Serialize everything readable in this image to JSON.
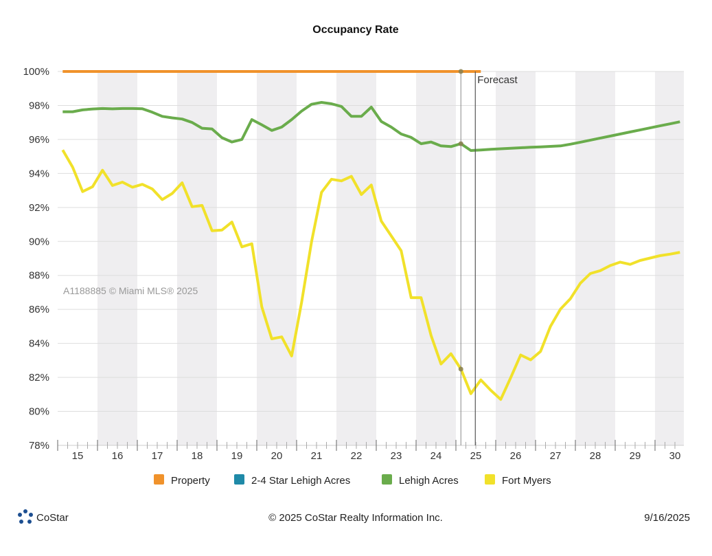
{
  "chart_data": {
    "type": "line",
    "title": "Occupancy Rate",
    "xlabel": "",
    "ylabel": "",
    "ylim": [
      78,
      100
    ],
    "yticks": [
      "100%",
      "98%",
      "96%",
      "94%",
      "92%",
      "90%",
      "88%",
      "86%",
      "84%",
      "82%",
      "80%",
      "78%"
    ],
    "ytick_values": [
      100,
      98,
      96,
      94,
      92,
      90,
      88,
      86,
      84,
      82,
      80,
      78
    ],
    "xticks": [
      "15",
      "16",
      "17",
      "18",
      "19",
      "20",
      "21",
      "22",
      "23",
      "24",
      "25",
      "26",
      "27",
      "28",
      "29",
      "30"
    ],
    "x_unit": "quarter index from 2015 Q1",
    "grid": true,
    "legend_position": "bottom",
    "forecast_label": "Forecast",
    "forecast_start_index": 41.45,
    "current_index": 40,
    "series": [
      {
        "name": "Property",
        "color": "#f0922b",
        "start": 0,
        "values": [
          100,
          100,
          100,
          100,
          100,
          100,
          100,
          100,
          100,
          100,
          100,
          100,
          100,
          100,
          100,
          100,
          100,
          100,
          100,
          100,
          100,
          100,
          100,
          100,
          100,
          100,
          100,
          100,
          100,
          100,
          100,
          100,
          100,
          100,
          100,
          100,
          100,
          100,
          100,
          100,
          100,
          100,
          100
        ]
      },
      {
        "name": "2-4 Star Lehigh Acres",
        "color": "#1f8aa8",
        "start": 0,
        "values": []
      },
      {
        "name": "Lehigh Acres",
        "color": "#6aac4c",
        "start": 0,
        "values": [
          97.63,
          97.63,
          97.74,
          97.79,
          97.82,
          97.8,
          97.82,
          97.82,
          97.81,
          97.6,
          97.36,
          97.27,
          97.2,
          97.0,
          96.66,
          96.62,
          96.1,
          95.85,
          96.0,
          97.17,
          96.86,
          96.53,
          96.73,
          97.17,
          97.67,
          98.07,
          98.18,
          98.1,
          97.94,
          97.36,
          97.36,
          97.9,
          97.06,
          96.73,
          96.32,
          96.12,
          95.75,
          95.85,
          95.62,
          95.58,
          95.75,
          95.35,
          95.38,
          95.42,
          95.45,
          95.48,
          95.51,
          95.54,
          95.56,
          95.59,
          95.62,
          95.72,
          95.84,
          95.96,
          96.08,
          96.2,
          96.32,
          96.44,
          96.56,
          96.68,
          96.8,
          96.92,
          97.04
        ]
      },
      {
        "name": "Fort Myers",
        "color": "#f1e12a",
        "start": 0,
        "values": [
          95.38,
          94.37,
          92.93,
          93.22,
          94.19,
          93.29,
          93.49,
          93.19,
          93.36,
          93.09,
          92.46,
          92.82,
          93.45,
          92.04,
          92.12,
          90.63,
          90.67,
          91.14,
          89.68,
          89.86,
          86.15,
          84.27,
          84.38,
          83.26,
          86.42,
          89.99,
          92.89,
          93.66,
          93.56,
          93.83,
          92.76,
          93.32,
          91.2,
          90.33,
          89.45,
          86.69,
          86.69,
          84.47,
          82.79,
          83.39,
          82.49,
          81.04,
          81.85,
          81.24,
          80.7,
          81.98,
          83.32,
          83.03,
          83.53,
          85.01,
          86.02,
          86.63,
          87.54,
          88.11,
          88.28,
          88.58,
          88.78,
          88.65,
          88.88,
          89.02,
          89.16,
          89.25,
          89.36
        ]
      }
    ]
  },
  "watermark": "A1188885 © Miami MLS® 2025",
  "footer": {
    "logo_text": "CoStar",
    "copyright": "© 2025 CoStar Realty Information Inc.",
    "date": "9/16/2025"
  },
  "colors": {
    "band": "#efeef0",
    "grid": "#dddddd",
    "axis": "#666666"
  }
}
